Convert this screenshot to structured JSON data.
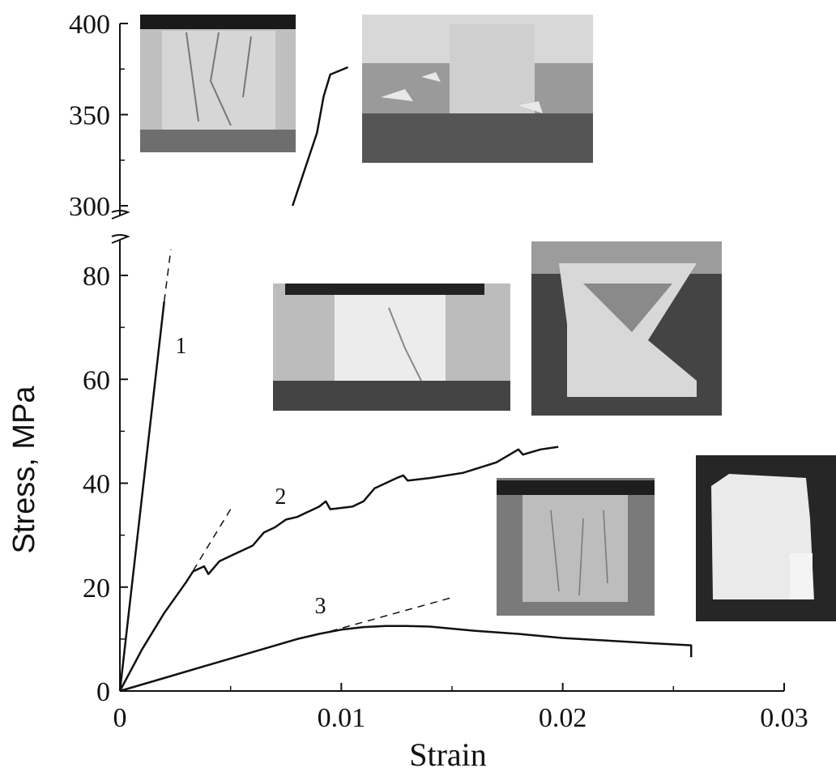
{
  "chart_data": {
    "type": "line",
    "xlabel": "Strain",
    "ylabel": "Stress, MPa",
    "xlim": [
      0,
      0.03
    ],
    "ylim_lower": [
      0,
      85
    ],
    "ylim_upper": [
      300,
      400
    ],
    "axis_break": "y between 80 and 300",
    "x_ticks": [
      0,
      0.01,
      0.02,
      0.03
    ],
    "x_tick_labels": [
      "0",
      "0.01",
      "0.02",
      "0.03"
    ],
    "y_ticks": [
      0,
      20,
      40,
      60,
      80,
      300,
      350,
      400
    ],
    "y_tick_labels": [
      "0",
      "20",
      "40",
      "60",
      "80",
      "300",
      "350",
      "400"
    ],
    "grid": false,
    "series": [
      {
        "name": "1",
        "style": "solid",
        "points": [
          [
            0,
            0
          ],
          [
            0.002,
            75
          ],
          [
            0.0078,
            300
          ],
          [
            0.0089,
            340
          ],
          [
            0.0092,
            360
          ],
          [
            0.0095,
            372
          ],
          [
            0.0103,
            376
          ]
        ],
        "label_at": [
          0.0025,
          65
        ]
      },
      {
        "name": "",
        "style": "dashed",
        "points": [
          [
            0.002,
            75
          ],
          [
            0.0023,
            85
          ]
        ]
      },
      {
        "name": "2",
        "style": "solid",
        "points": [
          [
            0,
            0
          ],
          [
            0.001,
            8
          ],
          [
            0.002,
            15
          ],
          [
            0.003,
            21
          ],
          [
            0.0033,
            23
          ],
          [
            0.0038,
            24
          ],
          [
            0.004,
            22.5
          ],
          [
            0.0045,
            25
          ],
          [
            0.005,
            26
          ],
          [
            0.006,
            28
          ],
          [
            0.0065,
            30.5
          ],
          [
            0.007,
            31.5
          ],
          [
            0.0075,
            33
          ],
          [
            0.008,
            33.5
          ],
          [
            0.0085,
            34.5
          ],
          [
            0.009,
            35.5
          ],
          [
            0.0093,
            36.5
          ],
          [
            0.0095,
            35
          ],
          [
            0.0105,
            35.5
          ],
          [
            0.011,
            36.5
          ],
          [
            0.0115,
            39
          ],
          [
            0.012,
            40
          ],
          [
            0.0125,
            41
          ],
          [
            0.0128,
            41.5
          ],
          [
            0.013,
            40.5
          ],
          [
            0.014,
            41
          ],
          [
            0.0155,
            42
          ],
          [
            0.017,
            44
          ],
          [
            0.018,
            46.5
          ],
          [
            0.0182,
            45.5
          ],
          [
            0.019,
            46.5
          ],
          [
            0.0198,
            47
          ]
        ],
        "label_at": [
          0.007,
          36
        ]
      },
      {
        "name": "",
        "style": "dashed",
        "points": [
          [
            0.003,
            21
          ],
          [
            0.005,
            35
          ]
        ]
      },
      {
        "name": "3",
        "style": "solid",
        "points": [
          [
            0,
            0
          ],
          [
            0.002,
            2.5
          ],
          [
            0.004,
            5
          ],
          [
            0.006,
            7.5
          ],
          [
            0.008,
            10
          ],
          [
            0.009,
            11
          ],
          [
            0.01,
            11.8
          ],
          [
            0.011,
            12.3
          ],
          [
            0.012,
            12.5
          ],
          [
            0.013,
            12.5
          ],
          [
            0.014,
            12.4
          ],
          [
            0.016,
            11.6
          ],
          [
            0.018,
            11
          ],
          [
            0.02,
            10.2
          ],
          [
            0.022,
            9.7
          ],
          [
            0.024,
            9.2
          ],
          [
            0.0258,
            8.8
          ],
          [
            0.0258,
            6.5
          ]
        ],
        "label_at": [
          0.0088,
          15
        ]
      },
      {
        "name": "",
        "style": "dashed",
        "points": [
          [
            0.0095,
            11.5
          ],
          [
            0.015,
            18
          ]
        ]
      }
    ]
  }
}
